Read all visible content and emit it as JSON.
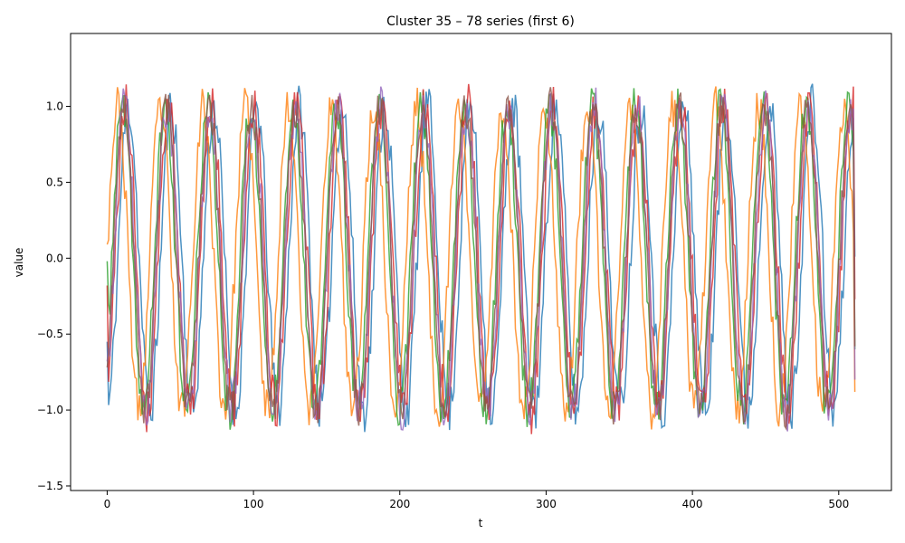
{
  "chart_data": {
    "type": "line",
    "title": "Cluster 35 – 78 series (first 6)",
    "xlabel": "t",
    "ylabel": "value",
    "xlim": [
      -25,
      536
    ],
    "ylim": [
      -1.53,
      1.48
    ],
    "xticks": [
      0,
      100,
      200,
      300,
      400,
      500
    ],
    "xtick_labels": [
      "0",
      "100",
      "200",
      "300",
      "400",
      "500"
    ],
    "yticks": [
      -1.5,
      -1.0,
      -0.5,
      0.0,
      0.5,
      1.0
    ],
    "ytick_labels": [
      "−1.5",
      "−1.0",
      "−0.5",
      "0.0",
      "0.5",
      "1.0"
    ],
    "grid": false,
    "legend": "none",
    "n_points": 512,
    "period": 29.2,
    "series": [
      {
        "color": "#1f77b4",
        "phase": 0.0,
        "amplitude": 1.0,
        "noise": 0.16,
        "seed": 11,
        "start": -0.55,
        "end": 0.01
      },
      {
        "color": "#ff7f0e",
        "phase": 1.6,
        "amplitude": 1.0,
        "noise": 0.14,
        "seed": 23,
        "start": 0.09,
        "end": -0.88
      },
      {
        "color": "#2ca02c",
        "phase": 0.9,
        "amplitude": 1.0,
        "noise": 0.14,
        "seed": 37,
        "start": -0.02,
        "end": -0.6
      },
      {
        "color": "#d62728",
        "phase": 0.4,
        "amplitude": 1.0,
        "noise": 0.16,
        "seed": 41,
        "start": -0.18,
        "end": -0.27
      },
      {
        "color": "#9467bd",
        "phase": 0.6,
        "amplitude": 1.0,
        "noise": 0.15,
        "seed": 53,
        "start": -0.68,
        "end": -0.8
      },
      {
        "color": "#8c564b",
        "phase": 0.7,
        "amplitude": 1.0,
        "noise": 0.13,
        "seed": 67,
        "start": -0.72,
        "end": -0.58
      }
    ]
  }
}
